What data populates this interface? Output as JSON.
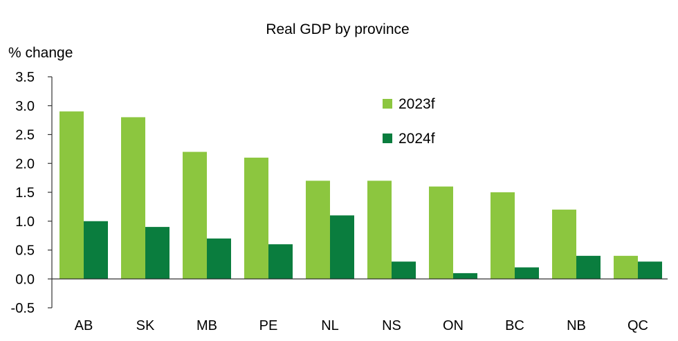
{
  "chart_data": {
    "type": "bar",
    "title": "Real GDP by province",
    "ylabel": "% change",
    "xlabel": "",
    "categories": [
      "AB",
      "SK",
      "MB",
      "PE",
      "NL",
      "NS",
      "ON",
      "BC",
      "NB",
      "QC"
    ],
    "series": [
      {
        "name": "2023f",
        "color": "#8cc63f",
        "values": [
          2.9,
          2.8,
          2.2,
          2.1,
          1.7,
          1.7,
          1.6,
          1.5,
          1.2,
          0.4
        ]
      },
      {
        "name": "2024f",
        "color": "#0a7d3e",
        "values": [
          1.0,
          0.9,
          0.7,
          0.6,
          1.1,
          0.3,
          0.1,
          0.2,
          0.4,
          0.3
        ]
      }
    ],
    "ylim": [
      -0.5,
      3.5
    ],
    "yticks": [
      "3.5",
      "3.0",
      "2.5",
      "2.0",
      "1.5",
      "1.0",
      "0.5",
      "0.0",
      "-0.5"
    ],
    "grid": false,
    "legend_position": "top-right"
  }
}
